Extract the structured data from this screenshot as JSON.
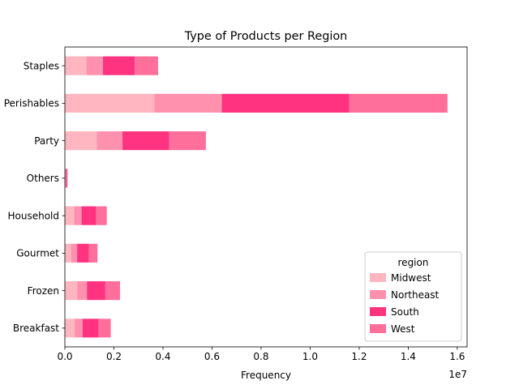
{
  "chart_data": {
    "type": "bar",
    "orientation": "horizontal",
    "stacked": true,
    "title": "Type of Products per Region",
    "xlabel": "Frequency",
    "ylabel": "",
    "x_offset_text": "1e7",
    "xlim": [
      0,
      16400000
    ],
    "x_ticks": [
      0,
      2000000,
      4000000,
      6000000,
      8000000,
      10000000,
      12000000,
      14000000,
      16000000
    ],
    "x_tick_labels": [
      "0.0",
      "0.2",
      "0.4",
      "0.6",
      "0.8",
      "1.0",
      "1.2",
      "1.4",
      "1.6"
    ],
    "categories": [
      "Breakfast",
      "Frozen",
      "Gourmet",
      "Household",
      "Others",
      "Party",
      "Perishables",
      "Staples"
    ],
    "series": [
      {
        "name": "Midwest",
        "color": "#ffb6c1",
        "values": [
          400000,
          500000,
          250000,
          380000,
          20000,
          1300000,
          3650000,
          880000
        ]
      },
      {
        "name": "Northeast",
        "color": "#ff91af",
        "values": [
          320000,
          400000,
          250000,
          300000,
          20000,
          1050000,
          2750000,
          670000
        ]
      },
      {
        "name": "South",
        "color": "#ff3380",
        "values": [
          650000,
          750000,
          480000,
          600000,
          40000,
          1900000,
          5200000,
          1300000
        ]
      },
      {
        "name": "West",
        "color": "#ff6f9c",
        "values": [
          500000,
          600000,
          350000,
          430000,
          30000,
          1500000,
          4000000,
          950000
        ]
      }
    ],
    "grid": false,
    "legend": {
      "title": "region",
      "placement": "lower-right"
    }
  }
}
